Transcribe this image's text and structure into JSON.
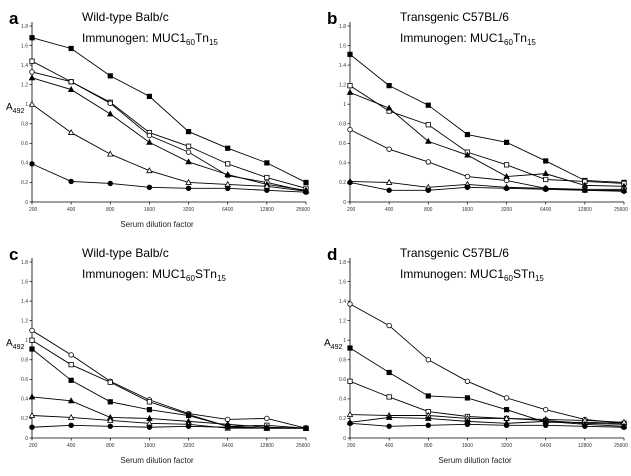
{
  "chart_data": [
    {
      "type": "line",
      "panel": "a",
      "title": "Wild-type Balb/c",
      "subtitle": {
        "prefix": "Immunogen: MUC1",
        "sub1": "60",
        "mid": "Tn",
        "sub2": "15"
      },
      "xlabel": "Serum dilution factor",
      "ylabel": {
        "main": "A",
        "sub": "492"
      },
      "categories": [
        "200",
        "400",
        "800",
        "1600",
        "3200",
        "6400",
        "12800",
        "25600"
      ],
      "ylim": [
        0,
        1.8
      ],
      "yticks": [
        "0",
        "0.2",
        "0.4",
        "0.6",
        "0.8",
        "1",
        "1.2",
        "1.4",
        "1.6",
        "1.8"
      ],
      "series": [
        {
          "marker": "filled-square",
          "values": [
            1.68,
            1.57,
            1.29,
            1.08,
            0.72,
            0.55,
            0.4,
            0.2
          ]
        },
        {
          "marker": "open-square",
          "values": [
            1.44,
            1.23,
            1.02,
            0.71,
            0.57,
            0.39,
            0.25,
            0.14
          ]
        },
        {
          "marker": "open-circle",
          "values": [
            1.33,
            1.23,
            1.01,
            0.68,
            0.51,
            0.27,
            0.2,
            0.11
          ]
        },
        {
          "marker": "filled-triangle",
          "values": [
            1.27,
            1.15,
            0.9,
            0.61,
            0.41,
            0.28,
            0.18,
            0.12
          ]
        },
        {
          "marker": "open-triangle",
          "values": [
            1.0,
            0.71,
            0.49,
            0.32,
            0.2,
            0.18,
            0.16,
            0.11
          ]
        },
        {
          "marker": "filled-circle",
          "values": [
            0.39,
            0.21,
            0.19,
            0.15,
            0.14,
            0.14,
            0.12,
            0.1
          ]
        }
      ]
    },
    {
      "type": "line",
      "panel": "b",
      "title": "Transgenic C57BL/6",
      "subtitle": {
        "prefix": "Immunogen: MUC1",
        "sub1": "60",
        "mid": "Tn",
        "sub2": "15"
      },
      "xlabel": "",
      "ylabel": {
        "main": "",
        "sub": ""
      },
      "categories": [
        "200",
        "400",
        "800",
        "1600",
        "3200",
        "6400",
        "12800",
        "25600"
      ],
      "ylim": [
        0,
        1.8
      ],
      "yticks": [
        "0",
        "0.2",
        "0.4",
        "0.6",
        "0.8",
        "1",
        "1.2",
        "1.4",
        "1.6",
        "1.8"
      ],
      "series": [
        {
          "marker": "filled-square",
          "values": [
            1.51,
            1.19,
            0.99,
            0.69,
            0.61,
            0.42,
            0.22,
            0.2
          ]
        },
        {
          "marker": "open-square",
          "values": [
            1.19,
            0.93,
            0.79,
            0.51,
            0.38,
            0.23,
            0.21,
            0.19
          ]
        },
        {
          "marker": "filled-triangle",
          "values": [
            1.12,
            0.96,
            0.62,
            0.48,
            0.26,
            0.29,
            0.17,
            0.16
          ]
        },
        {
          "marker": "open-circle",
          "values": [
            0.74,
            0.54,
            0.41,
            0.26,
            0.22,
            0.14,
            0.13,
            0.13
          ]
        },
        {
          "marker": "open-triangle",
          "values": [
            0.21,
            0.2,
            0.15,
            0.18,
            0.15,
            0.14,
            0.12,
            0.12
          ]
        },
        {
          "marker": "filled-circle",
          "values": [
            0.2,
            0.12,
            0.12,
            0.15,
            0.14,
            0.13,
            0.12,
            0.11
          ]
        }
      ]
    },
    {
      "type": "line",
      "panel": "c",
      "title": "Wild-type Balb/c",
      "subtitle": {
        "prefix": "Immunogen: MUC1",
        "sub1": "60",
        "mid": "STn",
        "sub2": "15"
      },
      "xlabel": "Serum dilution factor",
      "ylabel": {
        "main": "A",
        "sub": "492"
      },
      "categories": [
        "200",
        "400",
        "800",
        "1600",
        "3200",
        "6400",
        "12800",
        "25600"
      ],
      "ylim": [
        0,
        1.8
      ],
      "yticks": [
        "0",
        "0.2",
        "0.4",
        "0.6",
        "0.8",
        "1",
        "1.2",
        "1.4",
        "1.6",
        "1.8"
      ],
      "series": [
        {
          "marker": "open-circle",
          "values": [
            1.1,
            0.85,
            0.58,
            0.39,
            0.25,
            0.19,
            0.2,
            0.1
          ]
        },
        {
          "marker": "open-square",
          "values": [
            1.0,
            0.75,
            0.57,
            0.37,
            0.24,
            0.12,
            0.13,
            0.1
          ]
        },
        {
          "marker": "filled-square",
          "values": [
            0.91,
            0.59,
            0.37,
            0.29,
            0.23,
            0.12,
            0.1,
            0.1
          ]
        },
        {
          "marker": "filled-triangle",
          "values": [
            0.42,
            0.38,
            0.21,
            0.2,
            0.17,
            0.14,
            0.11,
            0.1
          ]
        },
        {
          "marker": "open-triangle",
          "values": [
            0.23,
            0.21,
            0.18,
            0.15,
            0.14,
            0.1,
            0.1,
            0.1
          ]
        },
        {
          "marker": "filled-circle",
          "values": [
            0.11,
            0.13,
            0.12,
            0.11,
            0.12,
            0.11,
            0.1,
            0.1
          ]
        }
      ]
    },
    {
      "type": "line",
      "panel": "d",
      "title": "Transgenic C57BL/6",
      "subtitle": {
        "prefix": "Immunogen: MUC1",
        "sub1": "60",
        "mid": "STn",
        "sub2": "15"
      },
      "xlabel": "Serum dilution factor",
      "ylabel": {
        "main": "A",
        "sub": "492"
      },
      "categories": [
        "200",
        "400",
        "800",
        "1600",
        "3200",
        "6400",
        "12800",
        "25600"
      ],
      "ylim": [
        0,
        1.8
      ],
      "yticks": [
        "0",
        "0.2",
        "0.4",
        "0.6",
        "0.8",
        "1",
        "1.2",
        "1.4",
        "1.6",
        "1.8"
      ],
      "series": [
        {
          "marker": "open-circle",
          "values": [
            1.37,
            1.15,
            0.8,
            0.58,
            0.41,
            0.29,
            0.19,
            0.15
          ]
        },
        {
          "marker": "filled-square",
          "values": [
            0.92,
            0.67,
            0.43,
            0.41,
            0.29,
            0.16,
            0.16,
            0.15
          ]
        },
        {
          "marker": "open-square",
          "values": [
            0.58,
            0.42,
            0.27,
            0.22,
            0.2,
            0.18,
            0.15,
            0.14
          ]
        },
        {
          "marker": "open-triangle",
          "values": [
            0.24,
            0.23,
            0.23,
            0.2,
            0.2,
            0.19,
            0.18,
            0.16
          ]
        },
        {
          "marker": "filled-triangle",
          "values": [
            0.16,
            0.21,
            0.2,
            0.17,
            0.15,
            0.17,
            0.14,
            0.12
          ]
        },
        {
          "marker": "filled-circle",
          "values": [
            0.15,
            0.12,
            0.13,
            0.14,
            0.13,
            0.13,
            0.12,
            0.11
          ]
        }
      ]
    }
  ],
  "panel_labels": [
    "a",
    "b",
    "c",
    "d"
  ]
}
